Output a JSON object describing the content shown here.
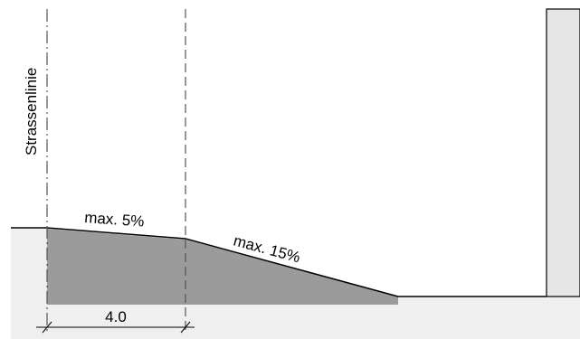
{
  "labels": {
    "street_line": "Strassenlinie",
    "slope_first": "max. 5%",
    "slope_second": "max. 15%",
    "dimension": "4.0"
  },
  "colors": {
    "ground_fill": "#efefef",
    "ramp_fill": "#9b9b9b",
    "building_fill": "#e6e6e6",
    "line": "#000000",
    "dash_line": "#555555",
    "background": "#ffffff"
  }
}
